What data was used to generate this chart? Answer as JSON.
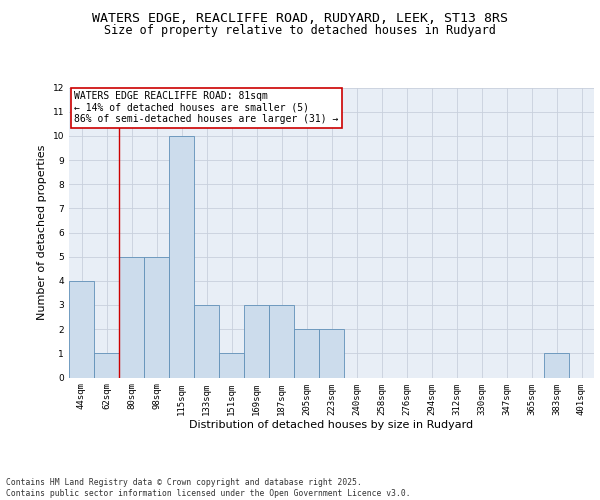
{
  "title1": "WATERS EDGE, REACLIFFE ROAD, RUDYARD, LEEK, ST13 8RS",
  "title2": "Size of property relative to detached houses in Rudyard",
  "xlabel": "Distribution of detached houses by size in Rudyard",
  "ylabel": "Number of detached properties",
  "bin_labels": [
    "44sqm",
    "62sqm",
    "80sqm",
    "98sqm",
    "115sqm",
    "133sqm",
    "151sqm",
    "169sqm",
    "187sqm",
    "205sqm",
    "223sqm",
    "240sqm",
    "258sqm",
    "276sqm",
    "294sqm",
    "312sqm",
    "330sqm",
    "347sqm",
    "365sqm",
    "383sqm",
    "401sqm"
  ],
  "bar_values": [
    4,
    1,
    5,
    5,
    10,
    3,
    1,
    3,
    3,
    2,
    2,
    0,
    0,
    0,
    0,
    0,
    0,
    0,
    0,
    1,
    0
  ],
  "bar_color": "#ccdcec",
  "bar_edge_color": "#6090b8",
  "grid_color": "#c8d0dc",
  "bg_color": "#e8eef6",
  "red_line_x": 1.5,
  "annotation_text": "WATERS EDGE REACLIFFE ROAD: 81sqm\n← 14% of detached houses are smaller (5)\n86% of semi-detached houses are larger (31) →",
  "annotation_box_color": "#ffffff",
  "annotation_border_color": "#cc0000",
  "ylim": [
    0,
    12
  ],
  "yticks": [
    0,
    1,
    2,
    3,
    4,
    5,
    6,
    7,
    8,
    9,
    10,
    11,
    12
  ],
  "footnote": "Contains HM Land Registry data © Crown copyright and database right 2025.\nContains public sector information licensed under the Open Government Licence v3.0.",
  "title_fontsize": 9.5,
  "subtitle_fontsize": 8.5,
  "axis_label_fontsize": 8,
  "tick_fontsize": 6.5,
  "annotation_fontsize": 7,
  "footnote_fontsize": 5.8
}
